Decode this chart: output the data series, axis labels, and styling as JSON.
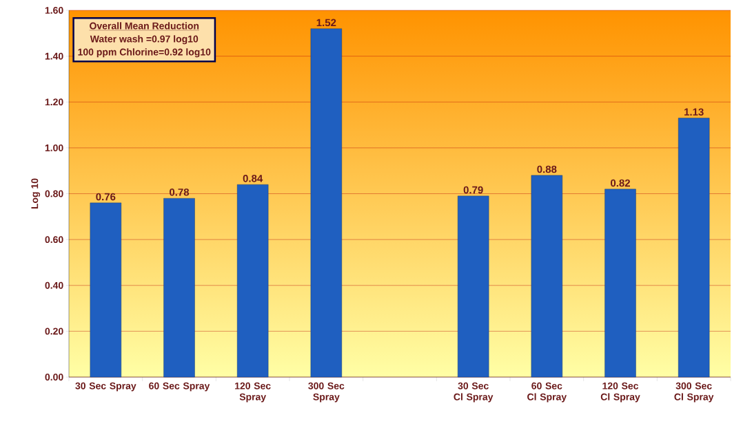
{
  "chart_data": {
    "type": "bar",
    "ylabel": "Log 10",
    "categories": [
      "30 Sec Spray",
      "60 Sec Spray",
      "120 Sec Spray",
      "300 Sec Spray",
      null,
      "30 Sec Cl Spray",
      "60 Sec Cl Spray",
      "120 Sec Cl Spray",
      "300 Sec Cl Spray"
    ],
    "values": [
      0.76,
      0.78,
      0.84,
      1.52,
      null,
      0.79,
      0.88,
      0.82,
      1.13
    ],
    "color": "#1f5fc0",
    "data_labels": true,
    "grid": "y",
    "ylim": [
      0,
      1.6
    ],
    "yticks": [
      {
        "value": 0,
        "label": "0.00"
      },
      {
        "value": 0.2,
        "label": "0.20"
      },
      {
        "value": 0.4,
        "label": "0.40"
      },
      {
        "value": 0.6,
        "label": "0.60"
      },
      {
        "value": 0.8,
        "label": "0.80"
      },
      {
        "value": 1.0,
        "label": "1.00"
      },
      {
        "value": 1.2,
        "label": "1.20"
      },
      {
        "value": 1.4,
        "label": "1.40"
      },
      {
        "value": 1.6,
        "label": "1.60"
      }
    ],
    "annotations": [
      "Overall Mean Reduction",
      "Water wash =0.97 log10",
      "100 ppm Chlorine=0.92 log10"
    ]
  }
}
